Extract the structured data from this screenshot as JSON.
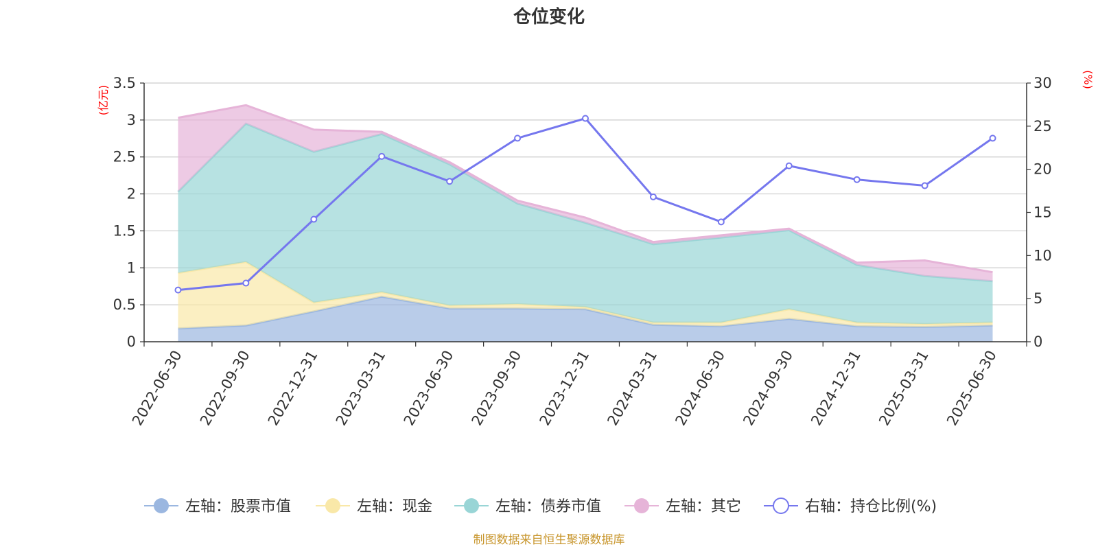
{
  "colors": {
    "stock": "#9bb7e0",
    "cash": "#f9e8a8",
    "bond": "#99d5d6",
    "other": "#e6b4d8",
    "ratio": "#7577ee",
    "axis_unit": "#ff0000",
    "source": "#c8962d"
  },
  "chart_data": {
    "type": "area",
    "title": "仓位变化",
    "categories": [
      "2022-06-30",
      "2022-09-30",
      "2022-12-31",
      "2023-03-31",
      "2023-06-30",
      "2023-09-30",
      "2023-12-31",
      "2024-03-31",
      "2024-06-30",
      "2024-09-30",
      "2024-12-31",
      "2025-03-31",
      "2025-06-30"
    ],
    "left_axis": {
      "unit": "(亿元)",
      "ylim": [
        0,
        3.5
      ],
      "ticks": [
        "0",
        "0.5",
        "1",
        "1.5",
        "2",
        "2.5",
        "3",
        "3.5"
      ]
    },
    "right_axis": {
      "unit": "(%)",
      "ylim": [
        0,
        30
      ],
      "ticks": [
        "0",
        "5",
        "10",
        "15",
        "20",
        "25",
        "30"
      ]
    },
    "stacked": true,
    "series": [
      {
        "name": "左轴：股票市值",
        "axis": "left",
        "values": [
          0.18,
          0.22,
          0.41,
          0.61,
          0.45,
          0.45,
          0.44,
          0.23,
          0.21,
          0.31,
          0.21,
          0.2,
          0.22
        ]
      },
      {
        "name": "左轴：现金",
        "axis": "left",
        "values": [
          0.75,
          0.86,
          0.12,
          0.06,
          0.04,
          0.06,
          0.03,
          0.03,
          0.05,
          0.13,
          0.05,
          0.04,
          0.04
        ]
      },
      {
        "name": "左轴：债券市值",
        "axis": "left",
        "values": [
          1.1,
          1.87,
          2.04,
          2.14,
          1.91,
          1.36,
          1.14,
          1.06,
          1.15,
          1.07,
          0.78,
          0.65,
          0.56
        ]
      },
      {
        "name": "左轴：其它",
        "axis": "left",
        "values": [
          1.0,
          0.25,
          0.3,
          0.03,
          0.03,
          0.04,
          0.07,
          0.03,
          0.03,
          0.02,
          0.03,
          0.21,
          0.12
        ]
      },
      {
        "name": "右轴：持仓比例(%)",
        "axis": "right",
        "type": "line",
        "values": [
          6.0,
          6.8,
          14.2,
          21.5,
          18.6,
          23.6,
          25.9,
          16.8,
          13.9,
          20.4,
          18.8,
          18.1,
          23.6
        ]
      }
    ],
    "grid": true,
    "legend_position": "bottom"
  },
  "source_text": "制图数据来自恒生聚源数据库"
}
